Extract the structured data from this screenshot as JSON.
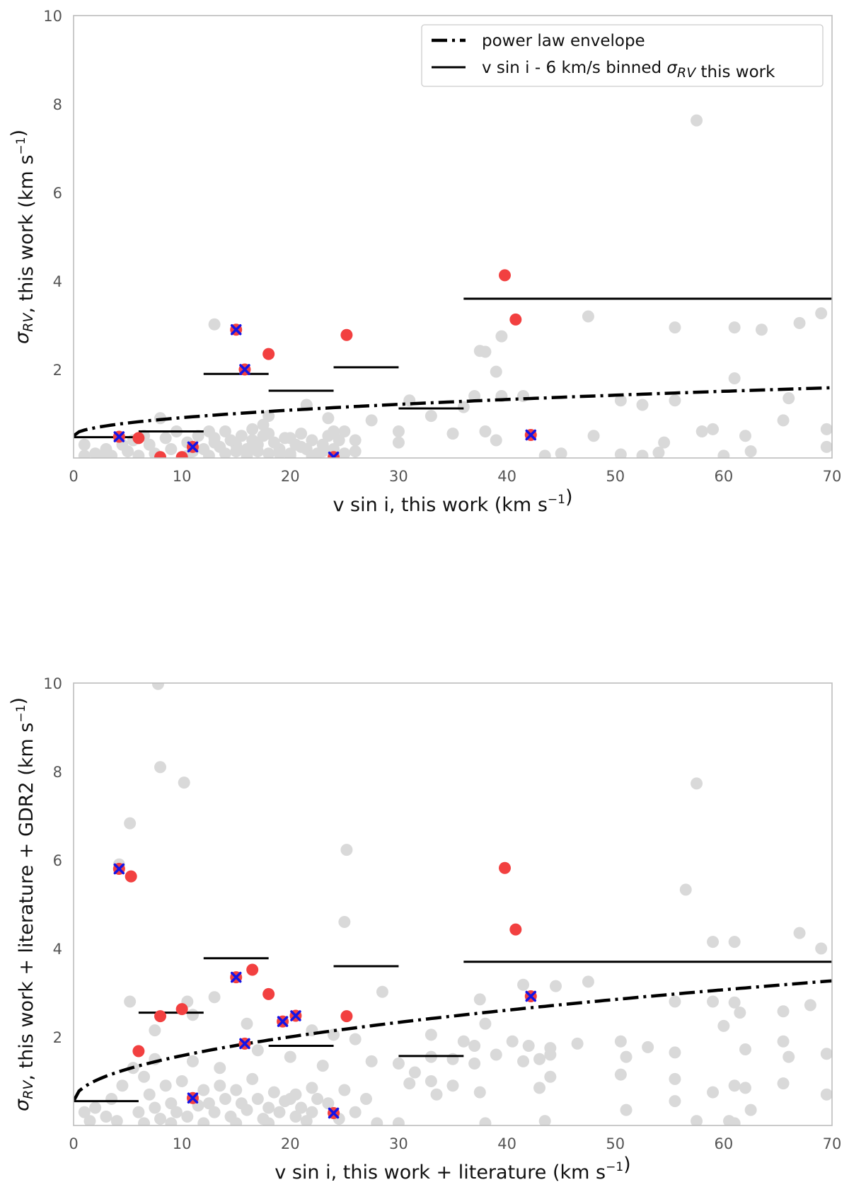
{
  "chart_data": [
    {
      "type": "scatter",
      "id": "top",
      "xlabel": "v sin i, this work (km s⁻¹)",
      "ylabel": "σRV, this work (km s⁻¹)",
      "xlim": [
        0,
        70
      ],
      "ylim": [
        0,
        10
      ],
      "xticks": [
        0,
        10,
        20,
        30,
        40,
        50,
        60,
        70
      ],
      "yticks": [
        2,
        4,
        6,
        8,
        10
      ],
      "legend_placement": "top-right",
      "legend": [
        {
          "style": "dashdot",
          "label": "power law envelope"
        },
        {
          "style": "solid",
          "label": "v sin i - 6 km/s binned σRV this work"
        }
      ],
      "envelope": {
        "a": 0.5,
        "b": 0.13,
        "p": 0.5
      },
      "gray_points": [
        [
          57.5,
          7.63
        ],
        [
          13,
          3.02
        ],
        [
          47.5,
          3.2
        ],
        [
          55.5,
          2.95
        ],
        [
          61,
          2.95
        ],
        [
          63.5,
          2.9
        ],
        [
          67,
          3.05
        ],
        [
          69,
          3.27
        ],
        [
          37.5,
          2.42
        ],
        [
          38,
          2.4
        ],
        [
          39.5,
          2.75
        ],
        [
          39,
          1.95
        ],
        [
          39.5,
          1.4
        ],
        [
          41.5,
          1.4
        ],
        [
          31,
          1.3
        ],
        [
          37,
          1.4
        ],
        [
          50.5,
          1.3
        ],
        [
          52.5,
          1.2
        ],
        [
          55.5,
          1.3
        ],
        [
          61,
          1.8
        ],
        [
          66,
          1.35
        ],
        [
          65.5,
          0.85
        ],
        [
          33,
          0.95
        ],
        [
          36,
          1.15
        ],
        [
          27.5,
          0.85
        ],
        [
          21.5,
          1.2
        ],
        [
          23.5,
          0.9
        ],
        [
          8,
          0.9
        ],
        [
          18,
          0.95
        ],
        [
          17.5,
          0.75
        ],
        [
          25,
          0.6
        ],
        [
          26,
          0.4
        ],
        [
          30,
          0.6
        ],
        [
          30,
          0.35
        ],
        [
          35,
          0.55
        ],
        [
          38,
          0.6
        ],
        [
          39,
          0.4
        ],
        [
          48,
          0.5
        ],
        [
          54.5,
          0.35
        ],
        [
          58,
          0.6
        ],
        [
          59,
          0.65
        ],
        [
          62,
          0.5
        ],
        [
          69.5,
          0.65
        ],
        [
          69.5,
          0.25
        ],
        [
          62.5,
          0.15
        ],
        [
          45,
          0.1
        ],
        [
          43.5,
          0.05
        ],
        [
          50.5,
          0.08
        ],
        [
          52.5,
          0.05
        ],
        [
          54,
          0.12
        ],
        [
          60,
          0.05
        ],
        [
          1,
          0.3
        ],
        [
          2,
          0.1
        ],
        [
          3,
          0.2
        ],
        [
          4.5,
          0.3
        ],
        [
          5.5,
          0.4
        ],
        [
          6.5,
          0.5
        ],
        [
          7,
          0.3
        ],
        [
          8.5,
          0.45
        ],
        [
          9,
          0.2
        ],
        [
          9.5,
          0.6
        ],
        [
          10.5,
          0.35
        ],
        [
          11.5,
          0.5
        ],
        [
          12,
          0.2
        ],
        [
          13,
          0.45
        ],
        [
          13.5,
          0.25
        ],
        [
          14,
          0.6
        ],
        [
          14.5,
          0.4
        ],
        [
          15,
          0.3
        ],
        [
          15.5,
          0.5
        ],
        [
          16,
          0.2
        ],
        [
          16.5,
          0.4
        ],
        [
          17,
          0.15
        ],
        [
          17.5,
          0.5
        ],
        [
          18.5,
          0.35
        ],
        [
          19,
          0.2
        ],
        [
          19.5,
          0.45
        ],
        [
          20,
          0.1
        ],
        [
          20.5,
          0.3
        ],
        [
          21,
          0.55
        ],
        [
          21.5,
          0.2
        ],
        [
          22,
          0.4
        ],
        [
          22.5,
          0.1
        ],
        [
          23,
          0.3
        ],
        [
          23.5,
          0.5
        ],
        [
          24,
          0.2
        ],
        [
          24.5,
          0.4
        ],
        [
          25,
          0.1
        ],
        [
          26,
          0.15
        ],
        [
          24,
          0.6
        ],
        [
          3.5,
          0.05
        ],
        [
          6,
          0.05
        ],
        [
          12.5,
          0.05
        ],
        [
          14,
          0.1
        ],
        [
          16,
          0.05
        ],
        [
          18,
          0.1
        ],
        [
          20,
          0.05
        ],
        [
          22,
          0.05
        ],
        [
          10.5,
          0.05
        ],
        [
          2.5,
          0.05
        ],
        [
          1,
          0.05
        ],
        [
          11,
          0.15
        ],
        [
          13,
          0.35
        ],
        [
          15,
          0.15
        ],
        [
          17,
          0.3
        ],
        [
          19,
          0.1
        ],
        [
          21,
          0.25
        ],
        [
          23,
          0.15
        ],
        [
          5,
          0.15
        ],
        [
          7.5,
          0.1
        ],
        [
          18,
          0.55
        ],
        [
          20,
          0.45
        ],
        [
          16.5,
          0.65
        ],
        [
          12.5,
          0.6
        ]
      ],
      "red_points": [
        [
          39.8,
          4.13
        ],
        [
          40.8,
          3.13
        ],
        [
          25.2,
          2.78
        ],
        [
          18,
          2.35
        ],
        [
          6,
          0.45
        ],
        [
          8,
          0.02
        ],
        [
          10,
          0.02
        ]
      ],
      "crossed_points": [
        [
          15,
          2.9
        ],
        [
          15.8,
          2.0
        ],
        [
          4.2,
          0.48
        ],
        [
          11,
          0.25
        ],
        [
          24,
          0.02
        ],
        [
          42.2,
          0.52
        ]
      ],
      "binned_segments": [
        {
          "x0": 0,
          "x1": 6,
          "y": 0.47
        },
        {
          "x0": 6,
          "x1": 12,
          "y": 0.6
        },
        {
          "x0": 12,
          "x1": 18,
          "y": 1.9
        },
        {
          "x0": 18,
          "x1": 24,
          "y": 1.52
        },
        {
          "x0": 24,
          "x1": 30,
          "y": 2.05
        },
        {
          "x0": 30,
          "x1": 36,
          "y": 1.12
        },
        {
          "x0": 36,
          "x1": 70,
          "y": 3.6
        }
      ]
    },
    {
      "type": "scatter",
      "id": "bottom",
      "xlabel": "v sin i, this work + literature (km s⁻¹)",
      "ylabel": "σRV, this work + literature + GDR2 (km s⁻¹)",
      "xlim": [
        0,
        70
      ],
      "ylim": [
        0,
        10
      ],
      "xticks": [
        0,
        10,
        20,
        30,
        40,
        50,
        60,
        70
      ],
      "yticks": [
        2,
        4,
        6,
        8,
        10
      ],
      "envelope": {
        "a": 0.55,
        "b": 0.325,
        "p": 0.5
      },
      "gray_points": [
        [
          7.8,
          9.98
        ],
        [
          8,
          8.1
        ],
        [
          10.2,
          7.75
        ],
        [
          57.5,
          7.73
        ],
        [
          5.2,
          6.83
        ],
        [
          4.2,
          5.9
        ],
        [
          25.2,
          6.23
        ],
        [
          56.5,
          5.33
        ],
        [
          25,
          4.6
        ],
        [
          67,
          4.35
        ],
        [
          59,
          4.15
        ],
        [
          61,
          4.15
        ],
        [
          69,
          4.0
        ],
        [
          47.5,
          3.25
        ],
        [
          44.5,
          3.15
        ],
        [
          41.5,
          3.18
        ],
        [
          28.5,
          3.02
        ],
        [
          13,
          2.9
        ],
        [
          10.5,
          2.8
        ],
        [
          5.2,
          2.8
        ],
        [
          37.5,
          2.85
        ],
        [
          55.5,
          2.8
        ],
        [
          59,
          2.8
        ],
        [
          61,
          2.78
        ],
        [
          65.5,
          2.58
        ],
        [
          68,
          2.72
        ],
        [
          61.5,
          2.55
        ],
        [
          60,
          2.25
        ],
        [
          7.5,
          2.15
        ],
        [
          11,
          2.5
        ],
        [
          16,
          2.3
        ],
        [
          22,
          2.15
        ],
        [
          24,
          2.05
        ],
        [
          26,
          1.95
        ],
        [
          33,
          2.05
        ],
        [
          36,
          1.9
        ],
        [
          37,
          1.8
        ],
        [
          38,
          2.3
        ],
        [
          42,
          1.8
        ],
        [
          40.5,
          1.9
        ],
        [
          44,
          1.75
        ],
        [
          46.5,
          1.85
        ],
        [
          50.5,
          1.9
        ],
        [
          53,
          1.77
        ],
        [
          55.5,
          1.65
        ],
        [
          62,
          1.72
        ],
        [
          65.5,
          1.9
        ],
        [
          66,
          1.55
        ],
        [
          69.5,
          1.62
        ],
        [
          7.5,
          1.5
        ],
        [
          11,
          1.45
        ],
        [
          13.5,
          1.3
        ],
        [
          17,
          1.7
        ],
        [
          20,
          1.55
        ],
        [
          23,
          1.35
        ],
        [
          27.5,
          1.45
        ],
        [
          30,
          1.4
        ],
        [
          31.5,
          1.2
        ],
        [
          33,
          1.55
        ],
        [
          35,
          1.5
        ],
        [
          37,
          1.4
        ],
        [
          39,
          1.6
        ],
        [
          41.5,
          1.45
        ],
        [
          43,
          1.5
        ],
        [
          44,
          1.6
        ],
        [
          44,
          1.1
        ],
        [
          51,
          1.55
        ],
        [
          50.5,
          1.15
        ],
        [
          55.5,
          1.05
        ],
        [
          61,
          0.9
        ],
        [
          59,
          0.75
        ],
        [
          62,
          0.85
        ],
        [
          69.5,
          0.7
        ],
        [
          65.5,
          0.95
        ],
        [
          51,
          0.35
        ],
        [
          55.5,
          0.55
        ],
        [
          43,
          0.85
        ],
        [
          37.5,
          0.75
        ],
        [
          31,
          0.95
        ],
        [
          33,
          1.0
        ],
        [
          33.5,
          0.7
        ],
        [
          35,
          0.9
        ],
        [
          27,
          0.6
        ],
        [
          25,
          0.8
        ],
        [
          22,
          0.85
        ],
        [
          18.5,
          0.75
        ],
        [
          15,
          0.8
        ],
        [
          2,
          0.4
        ],
        [
          3.5,
          0.6
        ],
        [
          4.5,
          0.9
        ],
        [
          5.5,
          1.3
        ],
        [
          6.5,
          1.1
        ],
        [
          7,
          0.7
        ],
        [
          8.5,
          0.9
        ],
        [
          9,
          0.5
        ],
        [
          10,
          1.0
        ],
        [
          12,
          0.8
        ],
        [
          12.5,
          0.5
        ],
        [
          13.5,
          0.9
        ],
        [
          14,
          0.6
        ],
        [
          15.5,
          0.5
        ],
        [
          16.5,
          1.05
        ],
        [
          17,
          0.6
        ],
        [
          18,
          0.4
        ],
        [
          19.5,
          0.55
        ],
        [
          20.5,
          0.7
        ],
        [
          21,
          0.4
        ],
        [
          22.5,
          0.6
        ],
        [
          23.5,
          0.5
        ],
        [
          26,
          0.3
        ],
        [
          24.5,
          0.15
        ],
        [
          28,
          0.05
        ],
        [
          30,
          0.05
        ],
        [
          38,
          0.05
        ],
        [
          43.5,
          0.1
        ],
        [
          57.5,
          0.1
        ],
        [
          60.5,
          0.1
        ],
        [
          61,
          0.05
        ],
        [
          62.5,
          0.35
        ],
        [
          1,
          0.3
        ],
        [
          3,
          0.2
        ],
        [
          4,
          0.1
        ],
        [
          6,
          0.3
        ],
        [
          7.5,
          0.4
        ],
        [
          8,
          0.15
        ],
        [
          9.5,
          0.3
        ],
        [
          10.5,
          0.2
        ],
        [
          11.5,
          0.45
        ],
        [
          13,
          0.3
        ],
        [
          14.5,
          0.2
        ],
        [
          16,
          0.35
        ],
        [
          17.5,
          0.15
        ],
        [
          19,
          0.3
        ],
        [
          20.5,
          0.2
        ],
        [
          21.5,
          0.1
        ],
        [
          22,
          0.3
        ],
        [
          6.5,
          0.05
        ],
        [
          12,
          0.05
        ],
        [
          18,
          0.05
        ],
        [
          15,
          0.05
        ],
        [
          9,
          0.05
        ],
        [
          1.5,
          0.1
        ],
        [
          20,
          0.6
        ]
      ],
      "red_points": [
        [
          39.8,
          5.82
        ],
        [
          5.3,
          5.63
        ],
        [
          40.8,
          4.43
        ],
        [
          16.5,
          3.52
        ],
        [
          18,
          2.97
        ],
        [
          10,
          2.63
        ],
        [
          8,
          2.47
        ],
        [
          25.2,
          2.47
        ],
        [
          6,
          1.68
        ]
      ],
      "crossed_points": [
        [
          4.2,
          5.8
        ],
        [
          15,
          3.35
        ],
        [
          42.2,
          2.92
        ],
        [
          20.5,
          2.48
        ],
        [
          19.3,
          2.35
        ],
        [
          15.8,
          1.85
        ],
        [
          11,
          0.62
        ],
        [
          24,
          0.28
        ]
      ],
      "binned_segments": [
        {
          "x0": 0,
          "x1": 6,
          "y": 0.55
        },
        {
          "x0": 6,
          "x1": 12,
          "y": 2.55
        },
        {
          "x0": 12,
          "x1": 18,
          "y": 3.78
        },
        {
          "x0": 18,
          "x1": 24,
          "y": 1.8
        },
        {
          "x0": 24,
          "x1": 30,
          "y": 3.6
        },
        {
          "x0": 30,
          "x1": 36,
          "y": 1.57
        },
        {
          "x0": 36,
          "x1": 70,
          "y": 3.7
        }
      ]
    }
  ],
  "colors": {
    "gray_point": "#d9d9d9",
    "red_point": "#f24040",
    "cross": "#1414e6",
    "line": "#000000",
    "axis_frame": "#bdbdbd"
  }
}
